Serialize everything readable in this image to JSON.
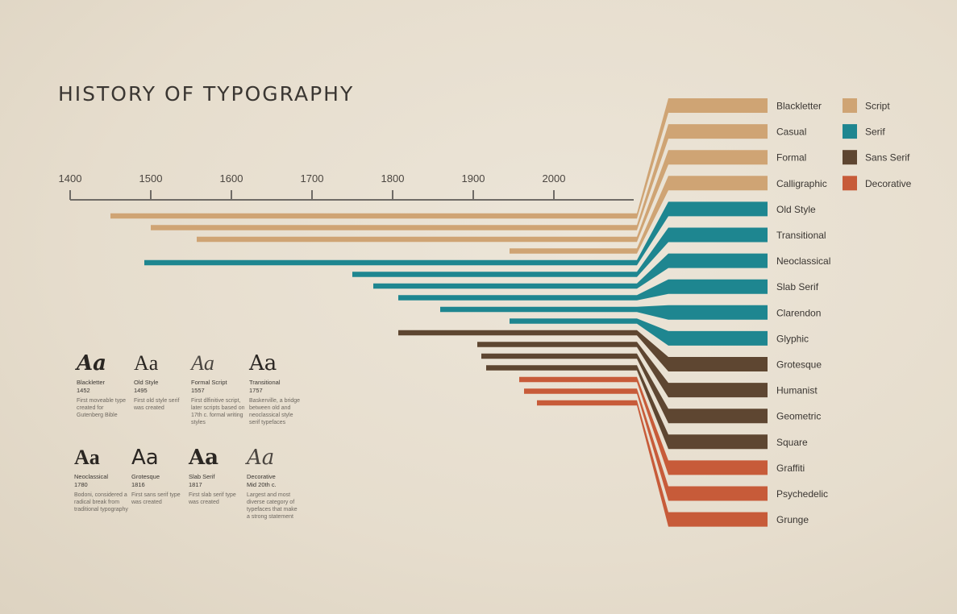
{
  "title": "HISTORY OF TYPOGRAPHY",
  "colors": {
    "Script": "#cfa474",
    "Serif": "#1e8690",
    "Sans Serif": "#5e4631",
    "Decorative": "#c75b39",
    "axis": "#6f6b66",
    "text": "#3a3632"
  },
  "chart_data": {
    "type": "bar",
    "subtype": "horizontal timeline",
    "title": "HISTORY OF TYPOGRAPHY",
    "x_ticks": [
      1400,
      1500,
      1600,
      1700,
      1800,
      1900,
      2000
    ],
    "x_range": [
      1400,
      2100
    ],
    "legend": [
      "Script",
      "Serif",
      "Sans Serif",
      "Decorative"
    ],
    "legend_position": "right",
    "series": [
      {
        "label": "Blackletter",
        "category": "Script",
        "start": 1450
      },
      {
        "label": "Casual",
        "category": "Script",
        "start": 1500
      },
      {
        "label": "Formal",
        "category": "Script",
        "start": 1557
      },
      {
        "label": "Calligraphic",
        "category": "Script",
        "start": 1945
      },
      {
        "label": "Old Style",
        "category": "Serif",
        "start": 1492
      },
      {
        "label": "Transitional",
        "category": "Serif",
        "start": 1750
      },
      {
        "label": "Neoclassical",
        "category": "Serif",
        "start": 1776
      },
      {
        "label": "Slab Serif",
        "category": "Serif",
        "start": 1807
      },
      {
        "label": "Clarendon",
        "category": "Serif",
        "start": 1859
      },
      {
        "label": "Glyphic",
        "category": "Serif",
        "start": 1945
      },
      {
        "label": "Grotesque",
        "category": "Sans Serif",
        "start": 1807
      },
      {
        "label": "Humanist",
        "category": "Sans Serif",
        "start": 1905
      },
      {
        "label": "Geometric",
        "category": "Sans Serif",
        "start": 1910
      },
      {
        "label": "Square",
        "category": "Sans Serif",
        "start": 1916
      },
      {
        "label": "Graffiti",
        "category": "Decorative",
        "start": 1957
      },
      {
        "label": "Psychedelic",
        "category": "Decorative",
        "start": 1963
      },
      {
        "label": "Grunge",
        "category": "Decorative",
        "start": 1979
      }
    ]
  },
  "specimens": [
    {
      "glyph": "Aa",
      "name": "Blackletter",
      "year": "1452",
      "desc": "First moveable type created for Gutenberg Bible"
    },
    {
      "glyph": "Aa",
      "name": "Old Style",
      "year": "1495",
      "desc": "First old style serif was created"
    },
    {
      "glyph": "Aa",
      "name": "Formal Script",
      "year": "1557",
      "desc": "First dlfinitive script, later scripts based on 17th c. formal writing styles"
    },
    {
      "glyph": "Aa",
      "name": "Transitional",
      "year": "1757",
      "desc": "Baskerville, a bridge between old and neoclassical style serif typefaces"
    },
    {
      "glyph": "Aa",
      "name": "Neoclassical",
      "year": "1780",
      "desc": "Bodoni, considered a radical break from traditional typography"
    },
    {
      "glyph": "Aa",
      "name": "Grotesque",
      "year": "1816",
      "desc": "First sans serif type was created"
    },
    {
      "glyph": "Aa",
      "name": "Slab Serif",
      "year": "1817",
      "desc": "First slab serif type was created"
    },
    {
      "glyph": "Aa",
      "name": "Decorative",
      "year": "Mid 20th c.",
      "desc": "Largest and most diverse category of typefaces that make a strong statement"
    }
  ]
}
